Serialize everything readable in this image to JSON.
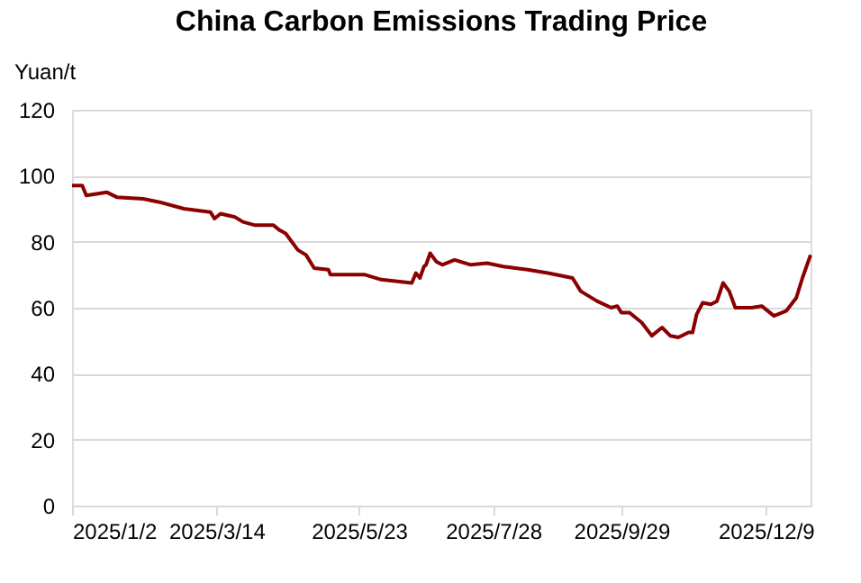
{
  "chart_data": {
    "type": "line",
    "title": "China Carbon Emissions Trading Price",
    "ylabel": "Yuan/t",
    "x": [
      "2025-01-02",
      "2025-01-07",
      "2025-01-09",
      "2025-01-19",
      "2025-01-24",
      "2025-02-06",
      "2025-02-14",
      "2025-02-26",
      "2025-03-04",
      "2025-03-11",
      "2025-03-13",
      "2025-03-16",
      "2025-03-23",
      "2025-03-27",
      "2025-04-02",
      "2025-04-11",
      "2025-04-14",
      "2025-04-17",
      "2025-04-23",
      "2025-04-27",
      "2025-05-01",
      "2025-05-08",
      "2025-05-09",
      "2025-05-26",
      "2025-06-03",
      "2025-06-18",
      "2025-06-20",
      "2025-06-22",
      "2025-06-24",
      "2025-06-25",
      "2025-06-27",
      "2025-06-30",
      "2025-07-03",
      "2025-07-09",
      "2025-07-17",
      "2025-07-25",
      "2025-08-02",
      "2025-08-14",
      "2025-08-24",
      "2025-09-05",
      "2025-09-09",
      "2025-09-17",
      "2025-09-24",
      "2025-09-27",
      "2025-09-29",
      "2025-10-03",
      "2025-10-09",
      "2025-10-14",
      "2025-10-19",
      "2025-10-23",
      "2025-10-27",
      "2025-11-01",
      "2025-11-03",
      "2025-11-05",
      "2025-11-08",
      "2025-11-12",
      "2025-11-15",
      "2025-11-18",
      "2025-11-21",
      "2025-11-24",
      "2025-12-02",
      "2025-12-07",
      "2025-12-13",
      "2025-12-19",
      "2025-12-24",
      "2025-12-27",
      "2025-12-31"
    ],
    "series": [
      {
        "color": "#8b0000",
        "values": [
          97,
          97,
          94,
          95,
          93.5,
          93,
          92,
          90,
          89.5,
          89,
          87,
          88.5,
          87.5,
          86,
          85,
          85,
          83.5,
          82.5,
          77.5,
          76,
          72,
          71.5,
          70,
          70,
          68.5,
          67.5,
          70.5,
          69,
          72.5,
          73,
          76.5,
          74,
          73,
          74.5,
          73,
          73.5,
          72.5,
          71.5,
          70.5,
          69,
          65,
          62,
          60,
          60.5,
          58.5,
          58.5,
          55.5,
          51.5,
          54,
          51.5,
          51,
          52.5,
          52.5,
          58,
          61.5,
          61,
          62,
          67.5,
          65,
          60,
          60,
          60.5,
          57.5,
          59,
          63,
          69,
          76
        ]
      }
    ],
    "ylim": [
      0,
      120
    ],
    "yticks": [
      0,
      20,
      40,
      60,
      80,
      100,
      120
    ],
    "xlim": [
      "2025-01-02",
      "2025-12-31"
    ],
    "xticks": [
      {
        "value": "2025-01-02",
        "label": "2025/1/2"
      },
      {
        "value": "2025-03-14",
        "label": "2025/3/14"
      },
      {
        "value": "2025-05-23",
        "label": "2025/5/23"
      },
      {
        "value": "2025-07-28",
        "label": "2025/7/28"
      },
      {
        "value": "2025-09-29",
        "label": "2025/9/29"
      },
      {
        "value": "2025-12-09",
        "label": "2025/12/9"
      }
    ],
    "grid": "y",
    "legend": false,
    "marker": "none",
    "line_style": "solid"
  }
}
